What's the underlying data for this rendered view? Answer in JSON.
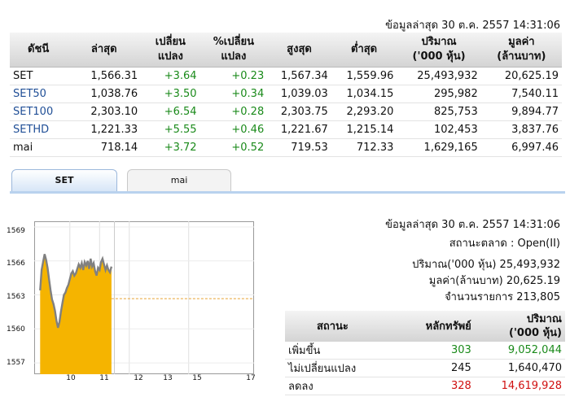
{
  "header": {
    "updated": "ข้อมูลล่าสุด 30 ต.ค. 2557 14:31:06"
  },
  "index_table": {
    "headers": [
      "ดัชนี",
      "ล่าสุด",
      "เปลี่ยน\nแปลง",
      "%เปลี่ยน\nแปลง",
      "สูงสุด",
      "ต่ำสุด",
      "ปริมาณ\n('000 หุ้น)",
      "มูลค่า\n(ล้านบาท)"
    ],
    "rows": [
      {
        "name": "SET",
        "last": "1,566.31",
        "chg": "+3.64",
        "pct": "+0.23",
        "high": "1,567.34",
        "low": "1,559.96",
        "vol": "25,493,932",
        "val": "20,625.19"
      },
      {
        "name": "SET50",
        "last": "1,038.76",
        "chg": "+3.50",
        "pct": "+0.34",
        "high": "1,039.03",
        "low": "1,034.15",
        "vol": "295,982",
        "val": "7,540.11"
      },
      {
        "name": "SET100",
        "last": "2,303.10",
        "chg": "+6.54",
        "pct": "+0.28",
        "high": "2,303.75",
        "low": "2,293.20",
        "vol": "825,753",
        "val": "9,894.77"
      },
      {
        "name": "SETHD",
        "last": "1,221.33",
        "chg": "+5.55",
        "pct": "+0.46",
        "high": "1,221.67",
        "low": "1,215.14",
        "vol": "102,453",
        "val": "3,837.76"
      },
      {
        "name": "mai",
        "last": "718.14",
        "chg": "+3.72",
        "pct": "+0.52",
        "high": "719.53",
        "low": "712.33",
        "vol": "1,629,165",
        "val": "6,997.46"
      }
    ]
  },
  "tabs": [
    {
      "label": "SET",
      "active": true
    },
    {
      "label": "mai",
      "active": false
    }
  ],
  "chart_data": {
    "type": "area",
    "yticks": [
      "1569",
      "1566",
      "1563",
      "1560",
      "1557"
    ],
    "xticks": [
      "10",
      "11",
      "12",
      "13",
      "15",
      "17"
    ],
    "ylim": [
      1556,
      1569.5
    ],
    "xlim": [
      9.8,
      17.2
    ],
    "prev_close": 1562.67,
    "colors": {
      "fill": "#f5b400",
      "line": "#808080",
      "ref": "#e8a030"
    },
    "x": [
      10.0,
      10.05,
      10.1,
      10.15,
      10.2,
      10.25,
      10.3,
      10.35,
      10.4,
      10.45,
      10.5,
      10.55,
      10.6,
      10.65,
      10.7,
      10.75,
      10.8,
      10.85,
      10.9,
      10.95,
      11.0,
      11.05,
      11.1,
      11.15,
      11.2,
      11.25,
      11.3,
      11.35,
      11.4,
      11.45,
      11.5,
      11.55,
      11.6,
      11.65,
      11.7,
      11.75,
      11.8,
      11.85,
      11.9,
      11.95,
      12.0,
      12.05,
      12.1,
      12.15,
      12.2,
      12.25,
      12.3,
      12.35,
      12.4
    ],
    "y": [
      1563.4,
      1565.2,
      1565.9,
      1566.6,
      1566.1,
      1565.4,
      1564.4,
      1563.4,
      1562.6,
      1562.2,
      1561.6,
      1560.7,
      1560.1,
      1560.6,
      1561.5,
      1562.3,
      1563.0,
      1563.2,
      1563.6,
      1563.9,
      1564.4,
      1564.9,
      1565.1,
      1564.7,
      1564.9,
      1565.3,
      1565.7,
      1565.4,
      1565.8,
      1565.2,
      1565.9,
      1565.6,
      1566.0,
      1565.3,
      1566.2,
      1565.5,
      1565.8,
      1565.1,
      1564.7,
      1565.4,
      1565.2,
      1565.9,
      1566.2,
      1565.7,
      1565.2,
      1565.6,
      1565.2,
      1565.0,
      1565.5
    ]
  },
  "market_info": {
    "updated": "ข้อมูลล่าสุด 30 ต.ค. 2557 14:31:06",
    "status": "สถานะตลาด : Open(II)",
    "volume": "ปริมาณ('000 หุ้น) 25,493,932",
    "value": "มูลค่า(ล้านบาท) 20,625.19",
    "deals": "จำนวนรายการ 213,805"
  },
  "status_table": {
    "headers": [
      "สถานะ",
      "หลักทรัพย์",
      "ปริมาณ\n('000 หุ้น)"
    ],
    "rows": [
      {
        "label": "เพิ่มขึ้น",
        "count": "303",
        "volume": "9,052,044",
        "class": "up"
      },
      {
        "label": "ไม่เปลี่ยนแปลง",
        "count": "245",
        "volume": "1,640,470",
        "class": ""
      },
      {
        "label": "ลดลง",
        "count": "328",
        "volume": "14,619,928",
        "class": "down"
      }
    ]
  }
}
